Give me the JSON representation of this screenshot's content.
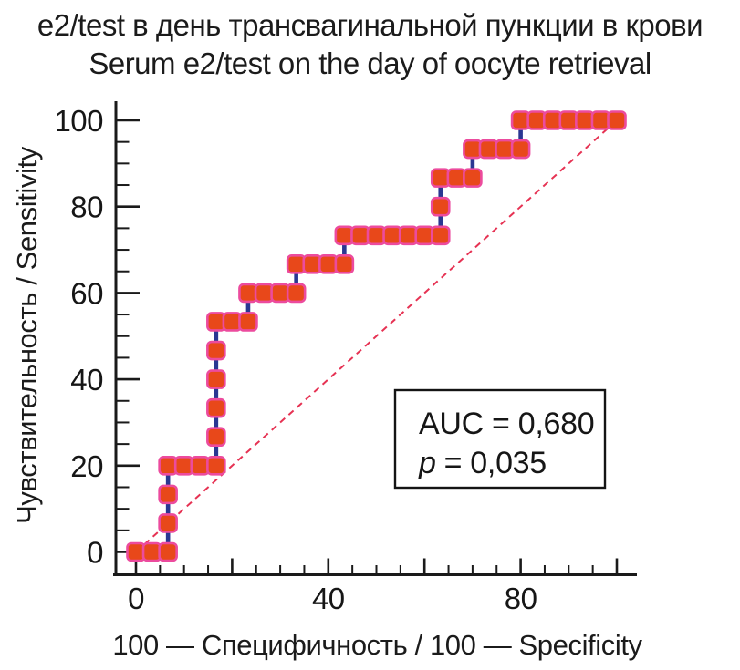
{
  "chart_data": {
    "type": "line",
    "subtype": "roc_step_curve",
    "title_ru": "e2/test в день трансвагинальной пункции в крови",
    "title_en": "Serum e2/test on the day of oocyte retrieval",
    "xlabel": "100 — Специфичность / 100 — Specificity",
    "ylabel": "Чувствительность / Sensitivity",
    "xlim": [
      0,
      100
    ],
    "ylim": [
      0,
      100
    ],
    "grid": false,
    "x_ticks": {
      "labeled_values": [
        0,
        40,
        80
      ],
      "labels": [
        "0",
        "40",
        "80"
      ]
    },
    "y_ticks": {
      "labeled_values": [
        0,
        20,
        40,
        60,
        80,
        100
      ],
      "labels": [
        "0",
        "20",
        "40",
        "60",
        "80",
        "100"
      ]
    },
    "minor_tick_step": 5,
    "major_tick_step": 20,
    "diagonal_reference": {
      "from": [
        0,
        0
      ],
      "to": [
        100,
        100
      ],
      "style": "dashed"
    },
    "annotation": {
      "auc_line": "AUC = 0,680",
      "p_symbol": "p",
      "p_rest": "= 0,035"
    },
    "roc_vertices": [
      [
        0,
        0
      ],
      [
        6.67,
        0
      ],
      [
        6.67,
        20
      ],
      [
        16.67,
        20
      ],
      [
        16.67,
        53.33
      ],
      [
        23.33,
        53.33
      ],
      [
        23.33,
        60
      ],
      [
        33.33,
        60
      ],
      [
        33.33,
        66.67
      ],
      [
        43.33,
        66.67
      ],
      [
        43.33,
        73.33
      ],
      [
        63.33,
        73.33
      ],
      [
        63.33,
        86.67
      ],
      [
        70,
        86.67
      ],
      [
        70,
        93.33
      ],
      [
        80,
        93.33
      ],
      [
        80,
        100
      ],
      [
        100,
        100
      ]
    ],
    "roc_markers": [
      [
        0,
        0
      ],
      [
        3.33,
        0
      ],
      [
        6.67,
        0
      ],
      [
        6.67,
        6.67
      ],
      [
        6.67,
        13.33
      ],
      [
        6.67,
        20
      ],
      [
        10,
        20
      ],
      [
        13.33,
        20
      ],
      [
        16.67,
        20
      ],
      [
        16.67,
        26.67
      ],
      [
        16.67,
        33.33
      ],
      [
        16.67,
        40
      ],
      [
        16.67,
        46.67
      ],
      [
        16.67,
        53.33
      ],
      [
        20,
        53.33
      ],
      [
        23.33,
        53.33
      ],
      [
        23.33,
        60
      ],
      [
        26.67,
        60
      ],
      [
        30,
        60
      ],
      [
        33.33,
        60
      ],
      [
        33.33,
        66.67
      ],
      [
        36.67,
        66.67
      ],
      [
        40,
        66.67
      ],
      [
        43.33,
        66.67
      ],
      [
        43.33,
        73.33
      ],
      [
        46.67,
        73.33
      ],
      [
        50,
        73.33
      ],
      [
        53.33,
        73.33
      ],
      [
        56.67,
        73.33
      ],
      [
        60,
        73.33
      ],
      [
        63.33,
        73.33
      ],
      [
        63.33,
        80
      ],
      [
        63.33,
        86.67
      ],
      [
        66.67,
        86.67
      ],
      [
        70,
        86.67
      ],
      [
        70,
        93.33
      ],
      [
        73.33,
        93.33
      ],
      [
        76.67,
        93.33
      ],
      [
        80,
        93.33
      ],
      [
        80,
        100
      ],
      [
        83.33,
        100
      ],
      [
        86.67,
        100
      ],
      [
        90,
        100
      ],
      [
        93.33,
        100
      ],
      [
        96.67,
        100
      ],
      [
        100,
        100
      ]
    ],
    "colors": {
      "marker_fill": "#E8481A",
      "marker_border": "#EC4B9E",
      "curve_line": "#2A3792",
      "diagonal": "#E63253",
      "axis": "#1A1A1A",
      "text": "#161616"
    }
  }
}
